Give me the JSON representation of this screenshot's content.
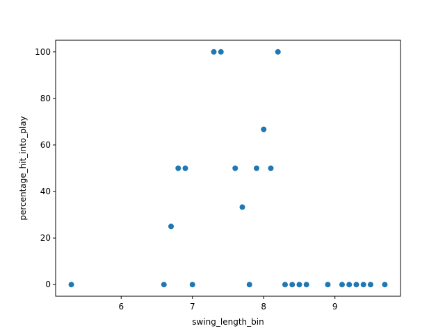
{
  "chart_data": {
    "type": "scatter",
    "title": "",
    "xlabel": "swing_length_bin",
    "ylabel": "percentage_hit_into_play",
    "xlim": [
      5.08,
      9.92
    ],
    "ylim": [
      -5,
      105
    ],
    "xticks": [
      6,
      7,
      8,
      9
    ],
    "yticks": [
      0,
      20,
      40,
      60,
      80,
      100
    ],
    "grid": false,
    "marker_color": "#1f77b4",
    "points": [
      {
        "x": 5.3,
        "y": 0
      },
      {
        "x": 6.6,
        "y": 0
      },
      {
        "x": 6.7,
        "y": 25
      },
      {
        "x": 6.8,
        "y": 50
      },
      {
        "x": 6.9,
        "y": 50
      },
      {
        "x": 7.0,
        "y": 0
      },
      {
        "x": 7.3,
        "y": 100
      },
      {
        "x": 7.4,
        "y": 100
      },
      {
        "x": 7.6,
        "y": 50
      },
      {
        "x": 7.7,
        "y": 33.3
      },
      {
        "x": 7.8,
        "y": 0
      },
      {
        "x": 7.9,
        "y": 50
      },
      {
        "x": 8.0,
        "y": 66.7
      },
      {
        "x": 8.1,
        "y": 50
      },
      {
        "x": 8.2,
        "y": 100
      },
      {
        "x": 8.3,
        "y": 0
      },
      {
        "x": 8.4,
        "y": 0
      },
      {
        "x": 8.5,
        "y": 0
      },
      {
        "x": 8.6,
        "y": 0
      },
      {
        "x": 8.9,
        "y": 0
      },
      {
        "x": 9.1,
        "y": 0
      },
      {
        "x": 9.2,
        "y": 0
      },
      {
        "x": 9.3,
        "y": 0
      },
      {
        "x": 9.4,
        "y": 0
      },
      {
        "x": 9.5,
        "y": 0
      },
      {
        "x": 9.7,
        "y": 0
      }
    ]
  }
}
